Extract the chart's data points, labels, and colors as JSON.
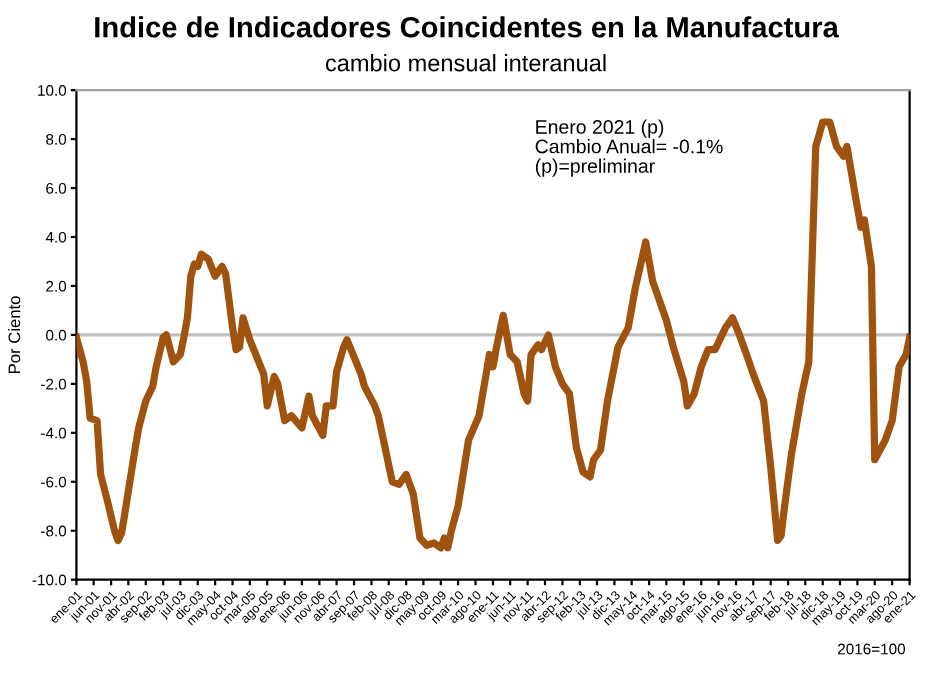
{
  "chart_data": {
    "type": "line",
    "title": "Indice de Indicadores Coincidentes en la Manufactura",
    "subtitle": "cambio mensual interanual",
    "ylabel": "Por Ciento",
    "annotations": [
      "Enero 2021 (p)\nCambio Anual= -0.1%\n(p)=preliminar",
      "2016=100"
    ],
    "series": [
      {
        "color": "#a0520f",
        "x": [
          "2001-01",
          "2001-03",
          "2001-04",
          "2001-05",
          "2001-07",
          "2001-08",
          "2001-10",
          "2001-12",
          "2002-01",
          "2002-02",
          "2002-03",
          "2002-06",
          "2002-07",
          "2002-09",
          "2002-11",
          "2002-12",
          "2003-02",
          "2003-03",
          "2003-05",
          "2003-07",
          "2003-08",
          "2003-09",
          "2003-10",
          "2003-11",
          "2003-12",
          "2004-01",
          "2004-03",
          "2004-05",
          "2004-07",
          "2004-08",
          "2004-10",
          "2004-11",
          "2004-12",
          "2005-01",
          "2005-03",
          "2005-05",
          "2005-07",
          "2005-08",
          "2005-10",
          "2005-11",
          "2006-01",
          "2006-03",
          "2006-06",
          "2006-08",
          "2006-09",
          "2006-12",
          "2007-01",
          "2007-03",
          "2007-04",
          "2007-06",
          "2007-07",
          "2007-09",
          "2007-11",
          "2007-12",
          "2008-03",
          "2008-04",
          "2008-08",
          "2008-10",
          "2008-12",
          "2009-02",
          "2009-04",
          "2009-06",
          "2009-08",
          "2009-10",
          "2009-11",
          "2009-12",
          "2010-01",
          "2010-03",
          "2010-06",
          "2010-09",
          "2010-12",
          "2011-01",
          "2011-02",
          "2011-04",
          "2011-06",
          "2011-08",
          "2011-10",
          "2011-11",
          "2011-12",
          "2012-02",
          "2012-03",
          "2012-05",
          "2012-07",
          "2012-09",
          "2012-11",
          "2013-01",
          "2013-03",
          "2013-05",
          "2013-06",
          "2013-08",
          "2013-10",
          "2014-01",
          "2014-04",
          "2014-06",
          "2014-09",
          "2014-11",
          "2015-03",
          "2015-05",
          "2015-08",
          "2015-09",
          "2015-11",
          "2016-01",
          "2016-03",
          "2016-05",
          "2016-08",
          "2016-10",
          "2016-12",
          "2017-02",
          "2017-04",
          "2017-07",
          "2017-09",
          "2017-11",
          "2017-12",
          "2018-01",
          "2018-03",
          "2018-06",
          "2018-08",
          "2018-10",
          "2018-11",
          "2018-12",
          "2019-02",
          "2019-04",
          "2019-06",
          "2019-07",
          "2019-10",
          "2019-11",
          "2019-12",
          "2020-02",
          "2020-03",
          "2020-06",
          "2020-08",
          "2020-10",
          "2020-12",
          "2021-01"
        ],
        "values": [
          -0.1,
          -1.1,
          -1.9,
          -3.4,
          -3.5,
          -5.7,
          -6.8,
          -8.0,
          -8.4,
          -8.1,
          -7.3,
          -4.6,
          -3.8,
          -2.7,
          -2.1,
          -1.3,
          -0.1,
          0.0,
          -1.1,
          -0.8,
          -0.1,
          0.7,
          2.4,
          2.9,
          2.8,
          3.3,
          3.1,
          2.4,
          2.8,
          2.5,
          0.3,
          -0.6,
          -0.5,
          0.7,
          -0.2,
          -0.9,
          -1.6,
          -2.9,
          -1.7,
          -2.0,
          -3.5,
          -3.3,
          -3.8,
          -2.5,
          -3.3,
          -4.1,
          -2.9,
          -2.9,
          -1.5,
          -0.5,
          -0.2,
          -0.9,
          -1.6,
          -2.1,
          -2.9,
          -3.3,
          -6.0,
          -6.1,
          -5.7,
          -6.5,
          -8.3,
          -8.6,
          -8.5,
          -8.7,
          -8.3,
          -8.7,
          -8.0,
          -7.0,
          -4.3,
          -3.3,
          -0.8,
          -1.3,
          -0.5,
          0.8,
          -0.8,
          -1.1,
          -2.4,
          -2.7,
          -0.8,
          -0.4,
          -0.6,
          0.0,
          -1.3,
          -2.0,
          -2.4,
          -4.6,
          -5.6,
          -5.8,
          -5.1,
          -4.7,
          -2.7,
          -0.5,
          0.3,
          1.9,
          3.8,
          2.2,
          0.6,
          -0.5,
          -1.9,
          -2.9,
          -2.4,
          -1.3,
          -0.6,
          -0.6,
          0.3,
          0.7,
          0.0,
          -0.8,
          -1.6,
          -2.7,
          -5.4,
          -8.4,
          -8.2,
          -7.0,
          -4.9,
          -2.4,
          -1.1,
          7.7,
          8.2,
          8.7,
          8.7,
          7.7,
          7.3,
          7.7,
          5.2,
          4.4,
          4.7,
          2.8,
          -5.1,
          -4.3,
          -3.5,
          -1.3,
          -0.8,
          -0.1
        ]
      }
    ],
    "xlim": [
      "2001-01",
      "2021-01"
    ],
    "xticks": [
      {
        "value": "2001-01",
        "label": "ene-01"
      },
      {
        "value": "2001-06",
        "label": "jun-01"
      },
      {
        "value": "2001-11",
        "label": "nov-01"
      },
      {
        "value": "2002-04",
        "label": "abr-02"
      },
      {
        "value": "2002-09",
        "label": "sep-02"
      },
      {
        "value": "2003-02",
        "label": "feb-03"
      },
      {
        "value": "2003-07",
        "label": "jul-03"
      },
      {
        "value": "2003-12",
        "label": "dic-03"
      },
      {
        "value": "2004-05",
        "label": "may-04"
      },
      {
        "value": "2004-10",
        "label": "oct-04"
      },
      {
        "value": "2005-03",
        "label": "mar-05"
      },
      {
        "value": "2005-08",
        "label": "ago-05"
      },
      {
        "value": "2006-01",
        "label": "ene-06"
      },
      {
        "value": "2006-06",
        "label": "jun-06"
      },
      {
        "value": "2006-11",
        "label": "nov-06"
      },
      {
        "value": "2007-04",
        "label": "abr-07"
      },
      {
        "value": "2007-09",
        "label": "sep-07"
      },
      {
        "value": "2008-02",
        "label": "feb-08"
      },
      {
        "value": "2008-07",
        "label": "jul-08"
      },
      {
        "value": "2008-12",
        "label": "dic-08"
      },
      {
        "value": "2009-05",
        "label": "may-09"
      },
      {
        "value": "2009-10",
        "label": "oct-09"
      },
      {
        "value": "2010-03",
        "label": "mar-10"
      },
      {
        "value": "2010-08",
        "label": "ago-10"
      },
      {
        "value": "2011-01",
        "label": "ene-11"
      },
      {
        "value": "2011-06",
        "label": "jun-11"
      },
      {
        "value": "2011-11",
        "label": "nov-11"
      },
      {
        "value": "2012-04",
        "label": "abr-12"
      },
      {
        "value": "2012-09",
        "label": "sep-12"
      },
      {
        "value": "2013-02",
        "label": "feb-13"
      },
      {
        "value": "2013-07",
        "label": "jul-13"
      },
      {
        "value": "2013-12",
        "label": "dic-13"
      },
      {
        "value": "2014-05",
        "label": "may-14"
      },
      {
        "value": "2014-10",
        "label": "oct-14"
      },
      {
        "value": "2015-03",
        "label": "mar-15"
      },
      {
        "value": "2015-08",
        "label": "ago-15"
      },
      {
        "value": "2016-01",
        "label": "ene-16"
      },
      {
        "value": "2016-06",
        "label": "jun-16"
      },
      {
        "value": "2016-11",
        "label": "nov-16"
      },
      {
        "value": "2017-04",
        "label": "abr-17"
      },
      {
        "value": "2017-09",
        "label": "sep-17"
      },
      {
        "value": "2018-02",
        "label": "feb-18"
      },
      {
        "value": "2018-07",
        "label": "jul-18"
      },
      {
        "value": "2018-12",
        "label": "dic-18"
      },
      {
        "value": "2019-05",
        "label": "may-19"
      },
      {
        "value": "2019-10",
        "label": "oct-19"
      },
      {
        "value": "2020-03",
        "label": "mar-20"
      },
      {
        "value": "2020-08",
        "label": "ago-20"
      },
      {
        "value": "2021-01",
        "label": "ene-21"
      }
    ],
    "ylim": [
      -10,
      10
    ],
    "yticks": [
      {
        "value": -10,
        "label": "-10.0"
      },
      {
        "value": -8,
        "label": "-8.0"
      },
      {
        "value": -6,
        "label": "-6.0"
      },
      {
        "value": -4,
        "label": "-4.0"
      },
      {
        "value": -2,
        "label": "-2.0"
      },
      {
        "value": 0,
        "label": "0.0"
      },
      {
        "value": 2,
        "label": "2.0"
      },
      {
        "value": 4,
        "label": "4.0"
      },
      {
        "value": 6,
        "label": "6.0"
      },
      {
        "value": 8,
        "label": "8.0"
      },
      {
        "value": 10,
        "label": "10.0"
      }
    ],
    "ref_lines": [
      {
        "axis": "y",
        "value": 0,
        "color": "#c0c0c0"
      }
    ],
    "grid": false,
    "legend": false
  }
}
